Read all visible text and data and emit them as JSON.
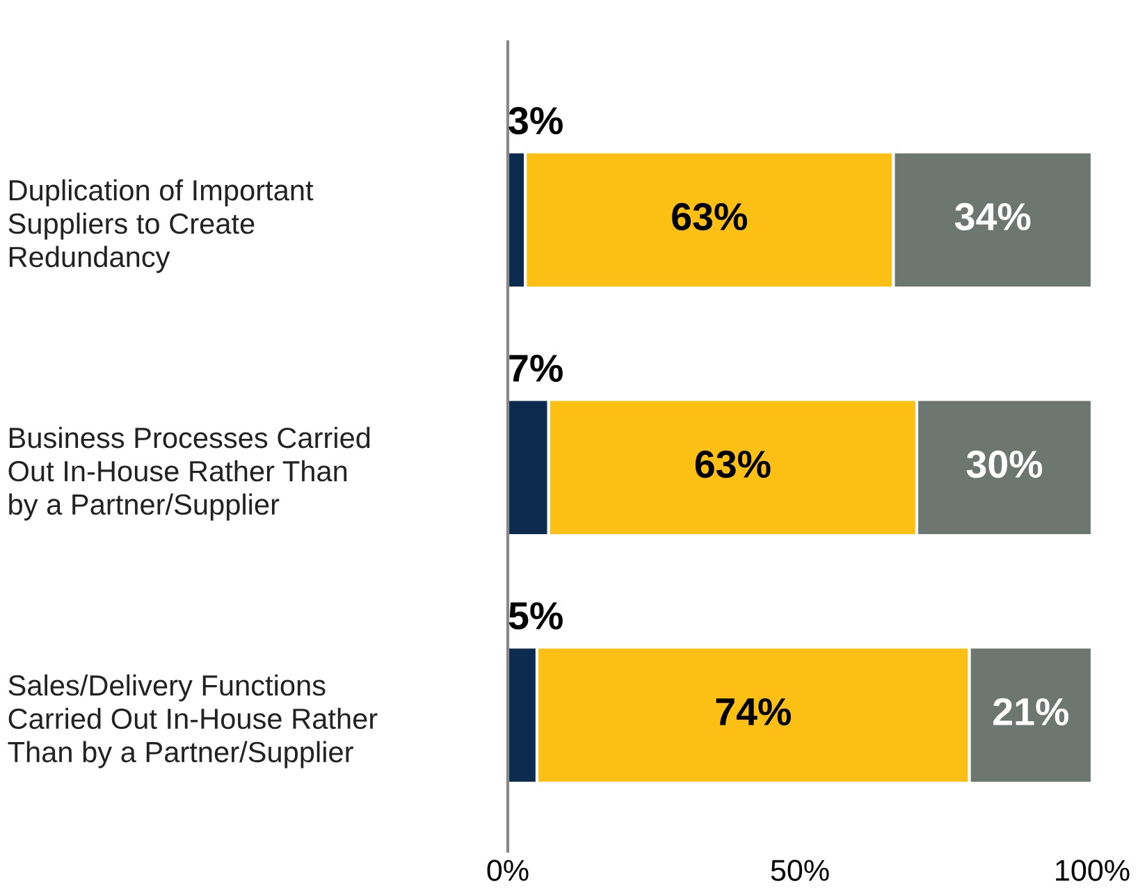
{
  "chart_data": {
    "type": "bar",
    "orientation": "horizontal",
    "stacked": true,
    "grid": false,
    "legend": false,
    "categories": [
      "Duplication of Important\nSuppliers to Create\nRedundancy",
      "Business Processes Carried\nOut In-House Rather Than\nby a Partner/Supplier",
      "Sales/Delivery Functions\nCarried Out In-House Rather\nThan by a Partner/Supplier"
    ],
    "series": [
      {
        "color": "#0d2a4f",
        "values": [
          3,
          7,
          5
        ],
        "value_labels": [
          "3%",
          "7%",
          "5%"
        ]
      },
      {
        "color": "#fcc015",
        "values": [
          63,
          63,
          74
        ],
        "value_labels": [
          "63%",
          "63%",
          "74%"
        ]
      },
      {
        "color": "#6e7672",
        "values": [
          34,
          30,
          21
        ],
        "value_labels": [
          "34%",
          "30%",
          "21%"
        ]
      }
    ],
    "xlim": [
      0,
      100
    ],
    "xticks": [
      {
        "value": 0,
        "label": "0%"
      },
      {
        "value": 50,
        "label": "50%"
      },
      {
        "value": 100,
        "label": "100%"
      }
    ]
  }
}
